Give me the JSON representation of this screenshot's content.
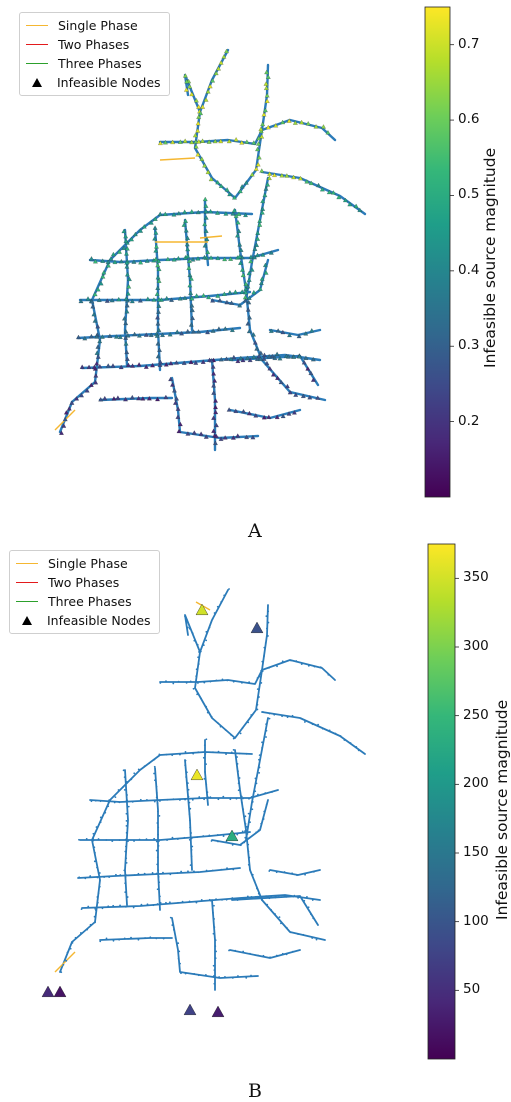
{
  "legend_entries": [
    {
      "label": "Single Phase",
      "color": "#f5b731",
      "marker": "line"
    },
    {
      "label": "Two Phases",
      "color": "#e31a1c",
      "marker": "line"
    },
    {
      "label": "Three Phases",
      "color": "#2ca02c",
      "marker": "line"
    },
    {
      "label": "Infeasible Nodes",
      "color": "#000000",
      "marker": "triangle"
    }
  ],
  "network_color": "#2b7bb9",
  "colormap": "viridis",
  "panels": [
    {
      "label": "A",
      "colorbar_label": "Infeasible source magnitude",
      "colorbar_range": [
        0.1,
        0.75
      ],
      "colorbar_ticks": [
        "0.2",
        "0.3",
        "0.4",
        "0.5",
        "0.6",
        "0.7"
      ]
    },
    {
      "label": "B",
      "colorbar_label": "Infeasible source magnitude",
      "colorbar_range": [
        0,
        375
      ],
      "colorbar_ticks": [
        "50",
        "100",
        "150",
        "200",
        "250",
        "300",
        "350"
      ]
    }
  ]
}
